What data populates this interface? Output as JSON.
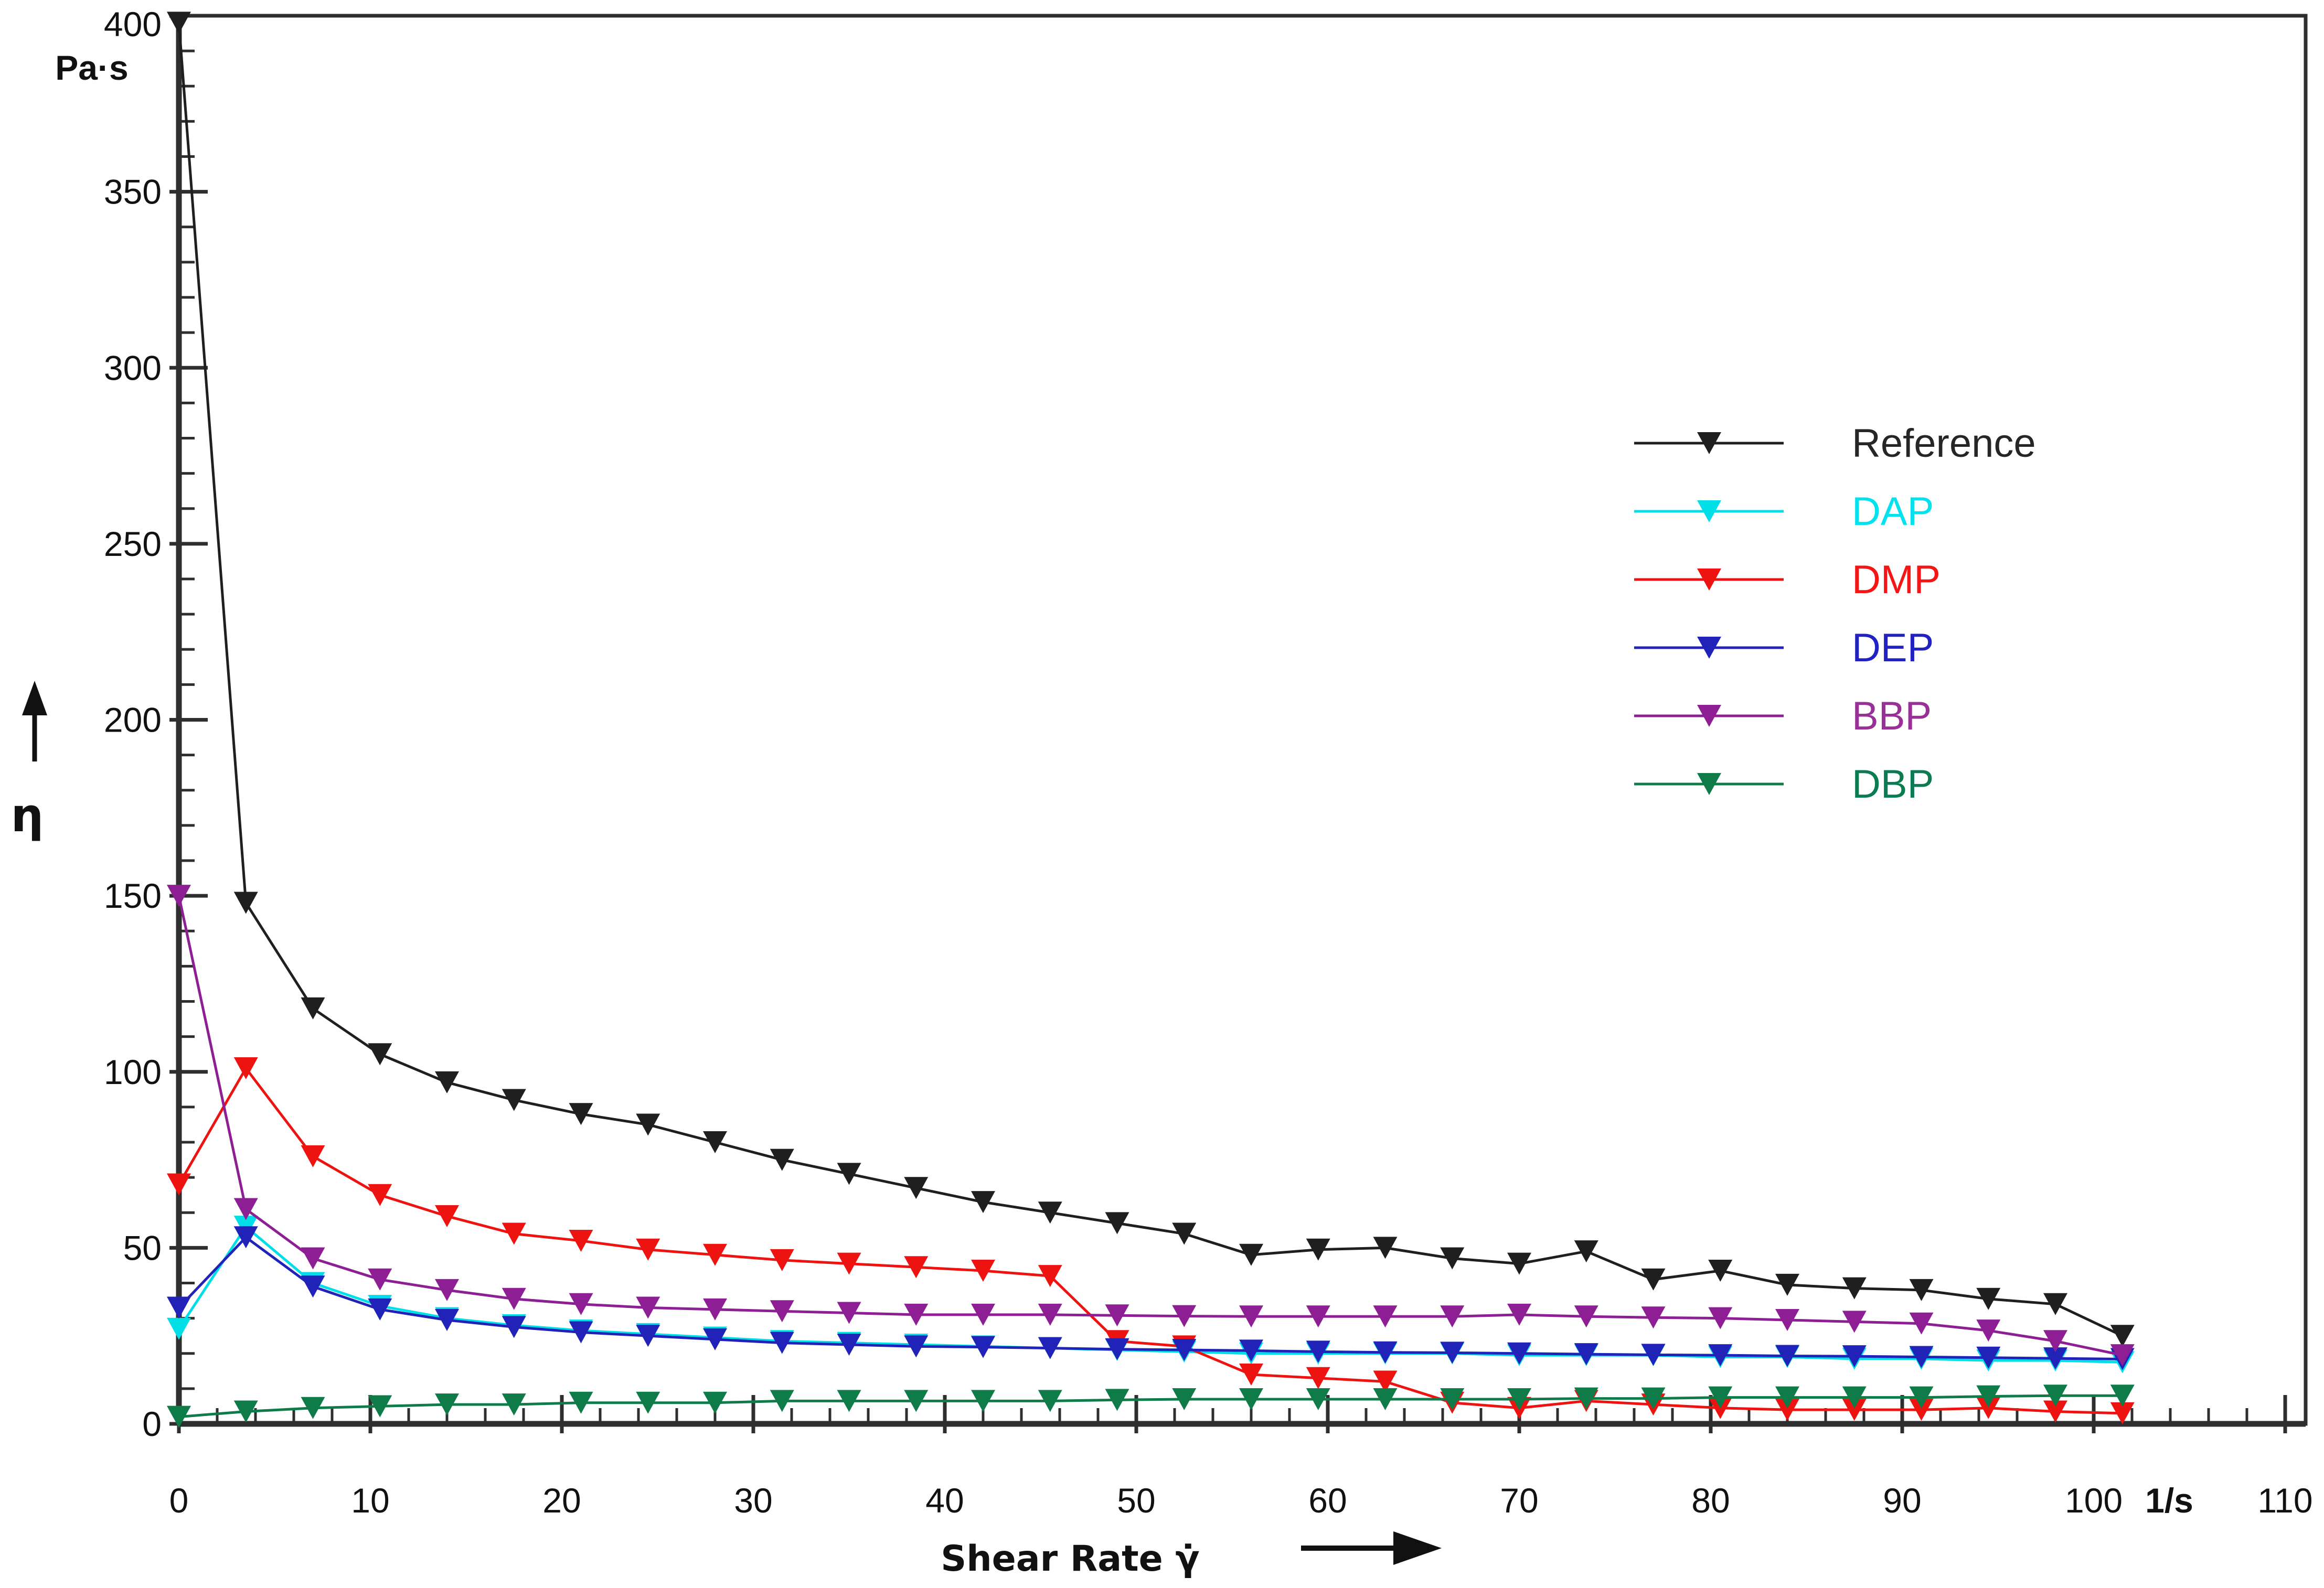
{
  "figure": {
    "y_unit": "Pa·s",
    "x_unit": "1/s",
    "y_symbol": "η",
    "x_title": "Shear Rate γ̇"
  },
  "chart_data": {
    "type": "line",
    "title": "",
    "xlabel": "Shear Rate γ̇ (1/s)",
    "ylabel": "η (Pa·s)",
    "xlim": [
      0,
      110
    ],
    "ylim": [
      0,
      400
    ],
    "x_tick_major_step": 10,
    "x_tick_minor_step": 2,
    "y_tick_major_step": 50,
    "y_tick_minor_step": 10,
    "grid": false,
    "marker": "triangle-down",
    "legend_position": "upper-right-inside",
    "frame": true,
    "axis_color": "#2e2e2e",
    "x": [
      0,
      3.5,
      7,
      10.5,
      14,
      17.5,
      21,
      24.5,
      28,
      31.5,
      35,
      38.5,
      42,
      45.5,
      49,
      52.5,
      56,
      59.5,
      63,
      66.5,
      70,
      73.5,
      77,
      80.5,
      84,
      87.5,
      91,
      94.5,
      98,
      101.5
    ],
    "series": [
      {
        "name": "Reference",
        "color": "#1f1f1f",
        "label_color": "#262626",
        "values": [
          398,
          148,
          118,
          105,
          97,
          92,
          88,
          85,
          80,
          75,
          71,
          67,
          63,
          60,
          57,
          54,
          48,
          49.5,
          50,
          47,
          45.5,
          49,
          41,
          43.5,
          39.5,
          38.5,
          38,
          35.5,
          34,
          25
        ]
      },
      {
        "name": "DAP",
        "color": "#00dfe8",
        "label_color": "#00e2ee",
        "values": [
          27,
          56,
          40,
          33.5,
          30,
          28,
          26.5,
          25.5,
          24.5,
          23.5,
          23,
          22.5,
          22,
          21.5,
          21,
          20.5,
          20,
          20,
          20,
          20,
          19.5,
          19.5,
          19.5,
          19,
          19,
          18.5,
          18.5,
          18,
          18,
          17.5
        ]
      },
      {
        "name": "DMP",
        "color": "#ed1310",
        "label_color": "#f51515",
        "values": [
          68,
          101,
          76,
          65,
          59,
          54,
          52,
          49.5,
          48,
          46.5,
          45.5,
          44.5,
          43.5,
          42,
          23.5,
          22,
          14,
          13,
          12,
          6,
          4.5,
          6.5,
          5.5,
          4.5,
          4,
          4,
          4,
          4.5,
          3.5,
          3
        ]
      },
      {
        "name": "DEP",
        "color": "#2022b8",
        "label_color": "#2222c0",
        "values": [
          33,
          53,
          39,
          32.5,
          29.5,
          27.5,
          26,
          25,
          24,
          23,
          22.5,
          22,
          21.8,
          21.5,
          21.2,
          21,
          20.8,
          20.5,
          20.3,
          20.2,
          20,
          19.8,
          19.6,
          19.5,
          19.3,
          19.2,
          19,
          18.8,
          18.6,
          18.4
        ]
      },
      {
        "name": "BBP",
        "color": "#8d1e94",
        "label_color": "#993097",
        "values": [
          150,
          61,
          47,
          41,
          38,
          35.5,
          34,
          33,
          32.5,
          32,
          31.5,
          31,
          31,
          31,
          30.8,
          30.6,
          30.5,
          30.5,
          30.5,
          30.5,
          31,
          30.5,
          30.2,
          30,
          29.5,
          29,
          28.5,
          26.5,
          23.5,
          19.5
        ]
      },
      {
        "name": "DBP",
        "color": "#0e7b49",
        "label_color": "#0b7c52",
        "values": [
          2,
          3.5,
          4.5,
          5,
          5.5,
          5.5,
          6,
          6,
          6,
          6.5,
          6.5,
          6.5,
          6.5,
          6.5,
          6.8,
          7,
          7,
          7,
          7,
          7,
          7,
          7.2,
          7.2,
          7.5,
          7.5,
          7.5,
          7.5,
          7.8,
          8,
          8
        ]
      }
    ]
  }
}
